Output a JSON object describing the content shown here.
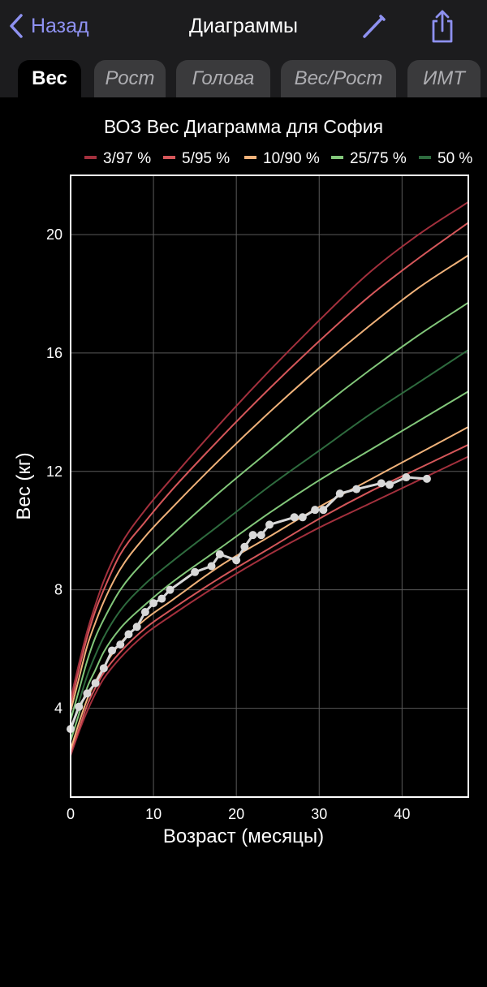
{
  "nav": {
    "back_label": "Назад",
    "title": "Диаграммы",
    "back_icon": "chevron-left-icon",
    "edit_icon": "pencil-icon",
    "share_icon": "share-icon"
  },
  "colors": {
    "accent": "#8e91f0",
    "bar": "#1c1c1e",
    "tab_inactive": "#3a3a3c",
    "p3_97": "#a3303d",
    "p5_95": "#d5575a",
    "p10_90": "#f0b27a",
    "p25_75": "#82c77a",
    "p50": "#2e6b3e",
    "child": "#d8d8d8"
  },
  "tabs": [
    {
      "label": "Вес",
      "active": true
    },
    {
      "label": "Рост",
      "active": false
    },
    {
      "label": "Голова",
      "active": false
    },
    {
      "label": "Вес/Рост",
      "active": false
    },
    {
      "label": "ИМТ",
      "active": false
    }
  ],
  "chart_data": {
    "type": "line",
    "title": "ВОЗ Вес Диаграмма для София",
    "xlabel": "Возраст (месяцы)",
    "ylabel": "Вес (кг)",
    "xlim": [
      0,
      48
    ],
    "ylim": [
      1,
      22
    ],
    "xticks": [
      0,
      10,
      20,
      30,
      40
    ],
    "yticks": [
      4,
      8,
      12,
      16,
      20
    ],
    "grid": true,
    "legend": {
      "position": "top",
      "items": [
        {
          "label": "3/97 %",
          "color": "#a3303d"
        },
        {
          "label": "5/95 %",
          "color": "#d5575a"
        },
        {
          "label": "10/90 %",
          "color": "#f0b27a"
        },
        {
          "label": "25/75 %",
          "color": "#82c77a"
        },
        {
          "label": "50 %",
          "color": "#2e6b3e"
        }
      ]
    },
    "percentile_x": [
      0,
      1,
      2,
      3,
      4,
      6,
      9,
      12,
      18,
      24,
      30,
      36,
      42,
      48
    ],
    "series": [
      {
        "name": "3 %",
        "color": "#a3303d",
        "values": [
          2.4,
          3.2,
          3.9,
          4.5,
          5.0,
          5.7,
          6.5,
          7.1,
          8.2,
          9.2,
          10.1,
          10.9,
          11.7,
          12.5
        ]
      },
      {
        "name": "5 %",
        "color": "#d5575a",
        "values": [
          2.5,
          3.3,
          4.1,
          4.7,
          5.2,
          5.9,
          6.7,
          7.3,
          8.4,
          9.4,
          10.4,
          11.3,
          12.1,
          12.9
        ]
      },
      {
        "name": "10 %",
        "color": "#f0b27a",
        "values": [
          2.6,
          3.5,
          4.3,
          4.9,
          5.4,
          6.2,
          7.0,
          7.6,
          8.8,
          9.8,
          10.8,
          11.7,
          12.6,
          13.5
        ]
      },
      {
        "name": "25 %",
        "color": "#82c77a",
        "values": [
          2.9,
          3.8,
          4.7,
          5.3,
          5.9,
          6.7,
          7.5,
          8.2,
          9.4,
          10.6,
          11.7,
          12.7,
          13.7,
          14.7
        ]
      },
      {
        "name": "50 %",
        "color": "#2e6b3e",
        "values": [
          3.2,
          4.2,
          5.1,
          5.8,
          6.4,
          7.3,
          8.2,
          8.9,
          10.2,
          11.5,
          12.7,
          13.9,
          15.0,
          16.1
        ]
      },
      {
        "name": "75 %",
        "color": "#82c77a",
        "values": [
          3.6,
          4.6,
          5.6,
          6.4,
          7.0,
          8.0,
          9.0,
          9.8,
          11.3,
          12.7,
          14.1,
          15.4,
          16.6,
          17.7
        ]
      },
      {
        "name": "90 %",
        "color": "#f0b27a",
        "values": [
          3.9,
          5.0,
          6.1,
          6.9,
          7.6,
          8.7,
          9.8,
          10.7,
          12.4,
          14.0,
          15.5,
          16.9,
          18.2,
          19.3
        ]
      },
      {
        "name": "95 %",
        "color": "#d5575a",
        "values": [
          4.1,
          5.3,
          6.4,
          7.3,
          8.0,
          9.2,
          10.3,
          11.3,
          13.1,
          14.8,
          16.4,
          17.9,
          19.2,
          20.4
        ]
      },
      {
        "name": "97 %",
        "color": "#a3303d",
        "values": [
          4.3,
          5.5,
          6.6,
          7.5,
          8.3,
          9.5,
          10.7,
          11.7,
          13.6,
          15.4,
          17.1,
          18.7,
          20.0,
          21.1
        ]
      }
    ],
    "child": {
      "color": "#d8d8d8",
      "x": [
        0,
        1,
        2,
        3,
        4,
        5,
        6,
        7,
        8,
        9,
        10,
        11,
        12,
        15,
        17,
        18,
        20,
        21,
        22,
        23,
        24,
        27,
        28,
        29.5,
        30.5,
        32.5,
        34.5,
        37.5,
        38.5,
        40.5,
        43
      ],
      "y": [
        3.3,
        4.05,
        4.5,
        4.85,
        5.35,
        5.95,
        6.15,
        6.5,
        6.75,
        7.25,
        7.55,
        7.7,
        8.0,
        8.6,
        8.8,
        9.2,
        9.0,
        9.45,
        9.85,
        9.85,
        10.2,
        10.45,
        10.45,
        10.7,
        10.7,
        11.25,
        11.4,
        11.6,
        11.55,
        11.8,
        11.75
      ]
    }
  }
}
